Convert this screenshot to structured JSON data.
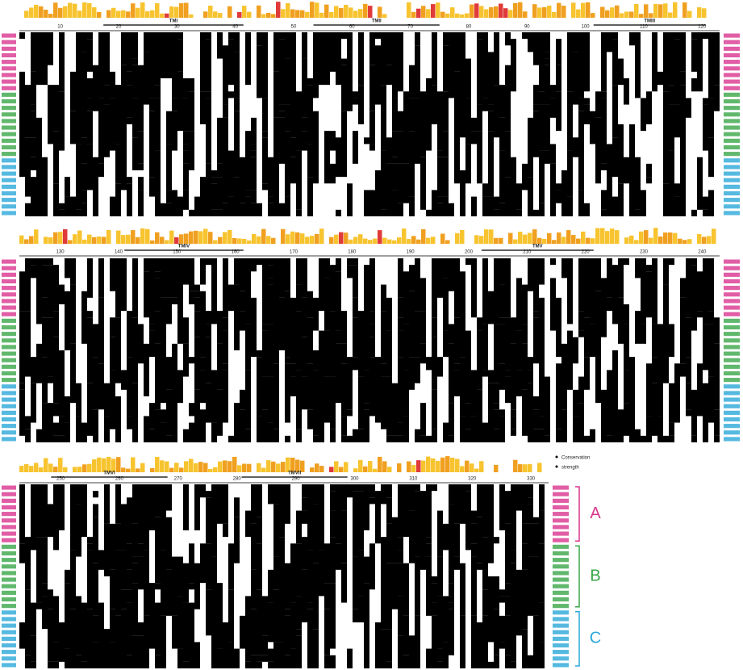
{
  "blocks": [
    {
      "ticks": [
        "10",
        "20",
        "30",
        "40",
        "50",
        "60",
        "70",
        "80",
        "90",
        "100",
        "110",
        "120"
      ],
      "tm": [
        "TMI",
        "TMII",
        "TMIII"
      ]
    },
    {
      "ticks": [
        "130",
        "140",
        "150",
        "160",
        "170",
        "180",
        "190",
        "200",
        "210",
        "220",
        "230",
        "240"
      ],
      "tm": [
        "TMIV",
        "TMV"
      ]
    },
    {
      "ticks": [
        "250",
        "260",
        "270",
        "280",
        "290",
        "300",
        "310",
        "320",
        "330"
      ],
      "tm": [
        "TMVI",
        "TMVII"
      ]
    }
  ],
  "legend": [
    "Conservation",
    "strength"
  ],
  "groups": [
    "A",
    "B",
    "C"
  ]
}
